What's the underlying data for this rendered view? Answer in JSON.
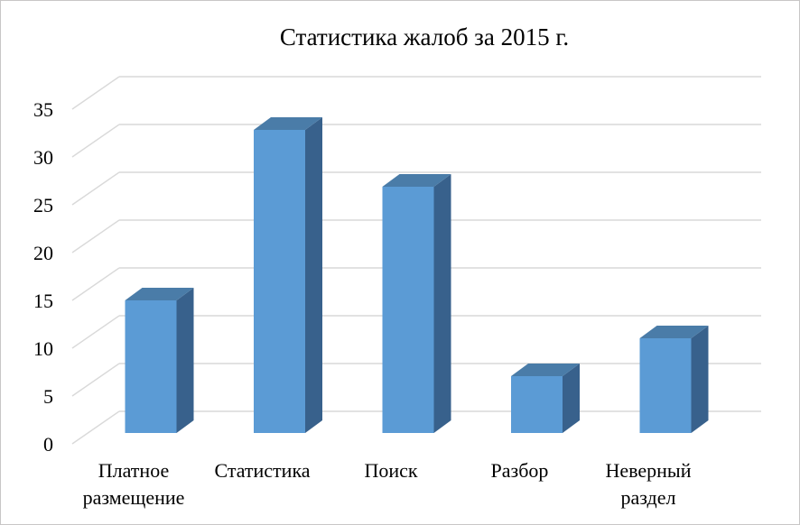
{
  "chart_data": {
    "type": "bar",
    "style": "3d-column",
    "title": "Статистика жалоб за 2015 г.",
    "categories": [
      "Платное размещение",
      "Статистика",
      "Поиск",
      "Разбор",
      "Неверный раздел"
    ],
    "values": [
      14,
      32,
      26,
      6,
      10
    ],
    "xlabel": "",
    "ylabel": "",
    "ylim": [
      0,
      35
    ],
    "ytick_step": 5,
    "ytick_labels": [
      "0",
      "5",
      "10",
      "15",
      "20",
      "25",
      "30",
      "35"
    ],
    "grid": true,
    "legend": false,
    "colors": {
      "bar_front": "#5B9BD5",
      "bar_top": "#4A7CA8",
      "bar_side": "#38618C",
      "gridline": "#D9D9D9",
      "text": "#000000",
      "chart_border": "#C8C6C6",
      "background": "#FFFFFF"
    }
  }
}
